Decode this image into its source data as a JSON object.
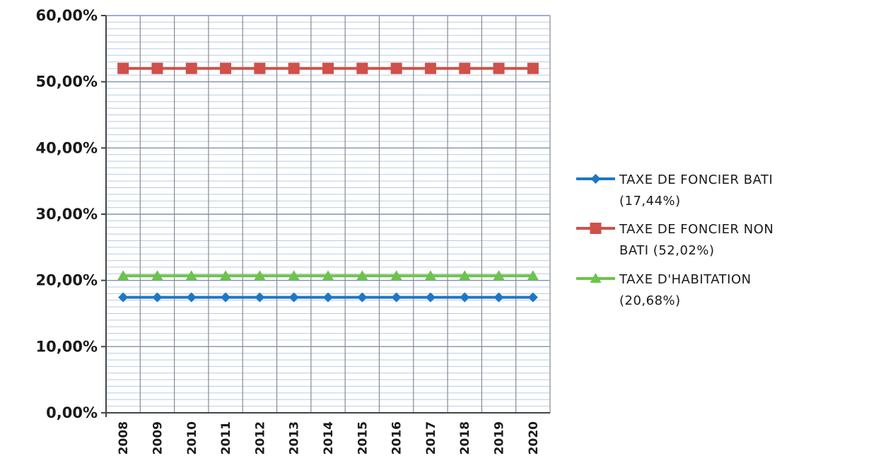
{
  "chart_data": {
    "type": "line",
    "categories": [
      "2008",
      "2009",
      "2010",
      "2011",
      "2012",
      "2013",
      "2014",
      "2015",
      "2016",
      "2017",
      "2018",
      "2019",
      "2020"
    ],
    "ylim": [
      0,
      60
    ],
    "yticks": [
      "0,00%",
      "10,00%",
      "20,00%",
      "30,00%",
      "40,00%",
      "50,00%",
      "60,00%"
    ],
    "grid": true,
    "legend_position": "right",
    "series": [
      {
        "name": "TAXE DE FONCIER BATI (17,44%)",
        "legend_lines": [
          "TAXE DE FONCIER BATI",
          "(17,44%)"
        ],
        "values": [
          17.44,
          17.44,
          17.44,
          17.44,
          17.44,
          17.44,
          17.44,
          17.44,
          17.44,
          17.44,
          17.44,
          17.44,
          17.44
        ],
        "color": "#1f77c4",
        "marker": "diamond"
      },
      {
        "name": "TAXE DE FONCIER NON BATI (52,02%)",
        "legend_lines": [
          "TAXE DE FONCIER NON",
          "BATI (52,02%)"
        ],
        "values": [
          52.02,
          52.02,
          52.02,
          52.02,
          52.02,
          52.02,
          52.02,
          52.02,
          52.02,
          52.02,
          52.02,
          52.02,
          52.02
        ],
        "color": "#d0504a",
        "marker": "square"
      },
      {
        "name": "TAXE D'HABITATION (20,68%)",
        "legend_lines": [
          "TAXE D'HABITATION",
          "(20,68%)"
        ],
        "values": [
          20.68,
          20.68,
          20.68,
          20.68,
          20.68,
          20.68,
          20.68,
          20.68,
          20.68,
          20.68,
          20.68,
          20.68,
          20.68
        ],
        "color": "#6cc44a",
        "marker": "triangle"
      }
    ]
  }
}
